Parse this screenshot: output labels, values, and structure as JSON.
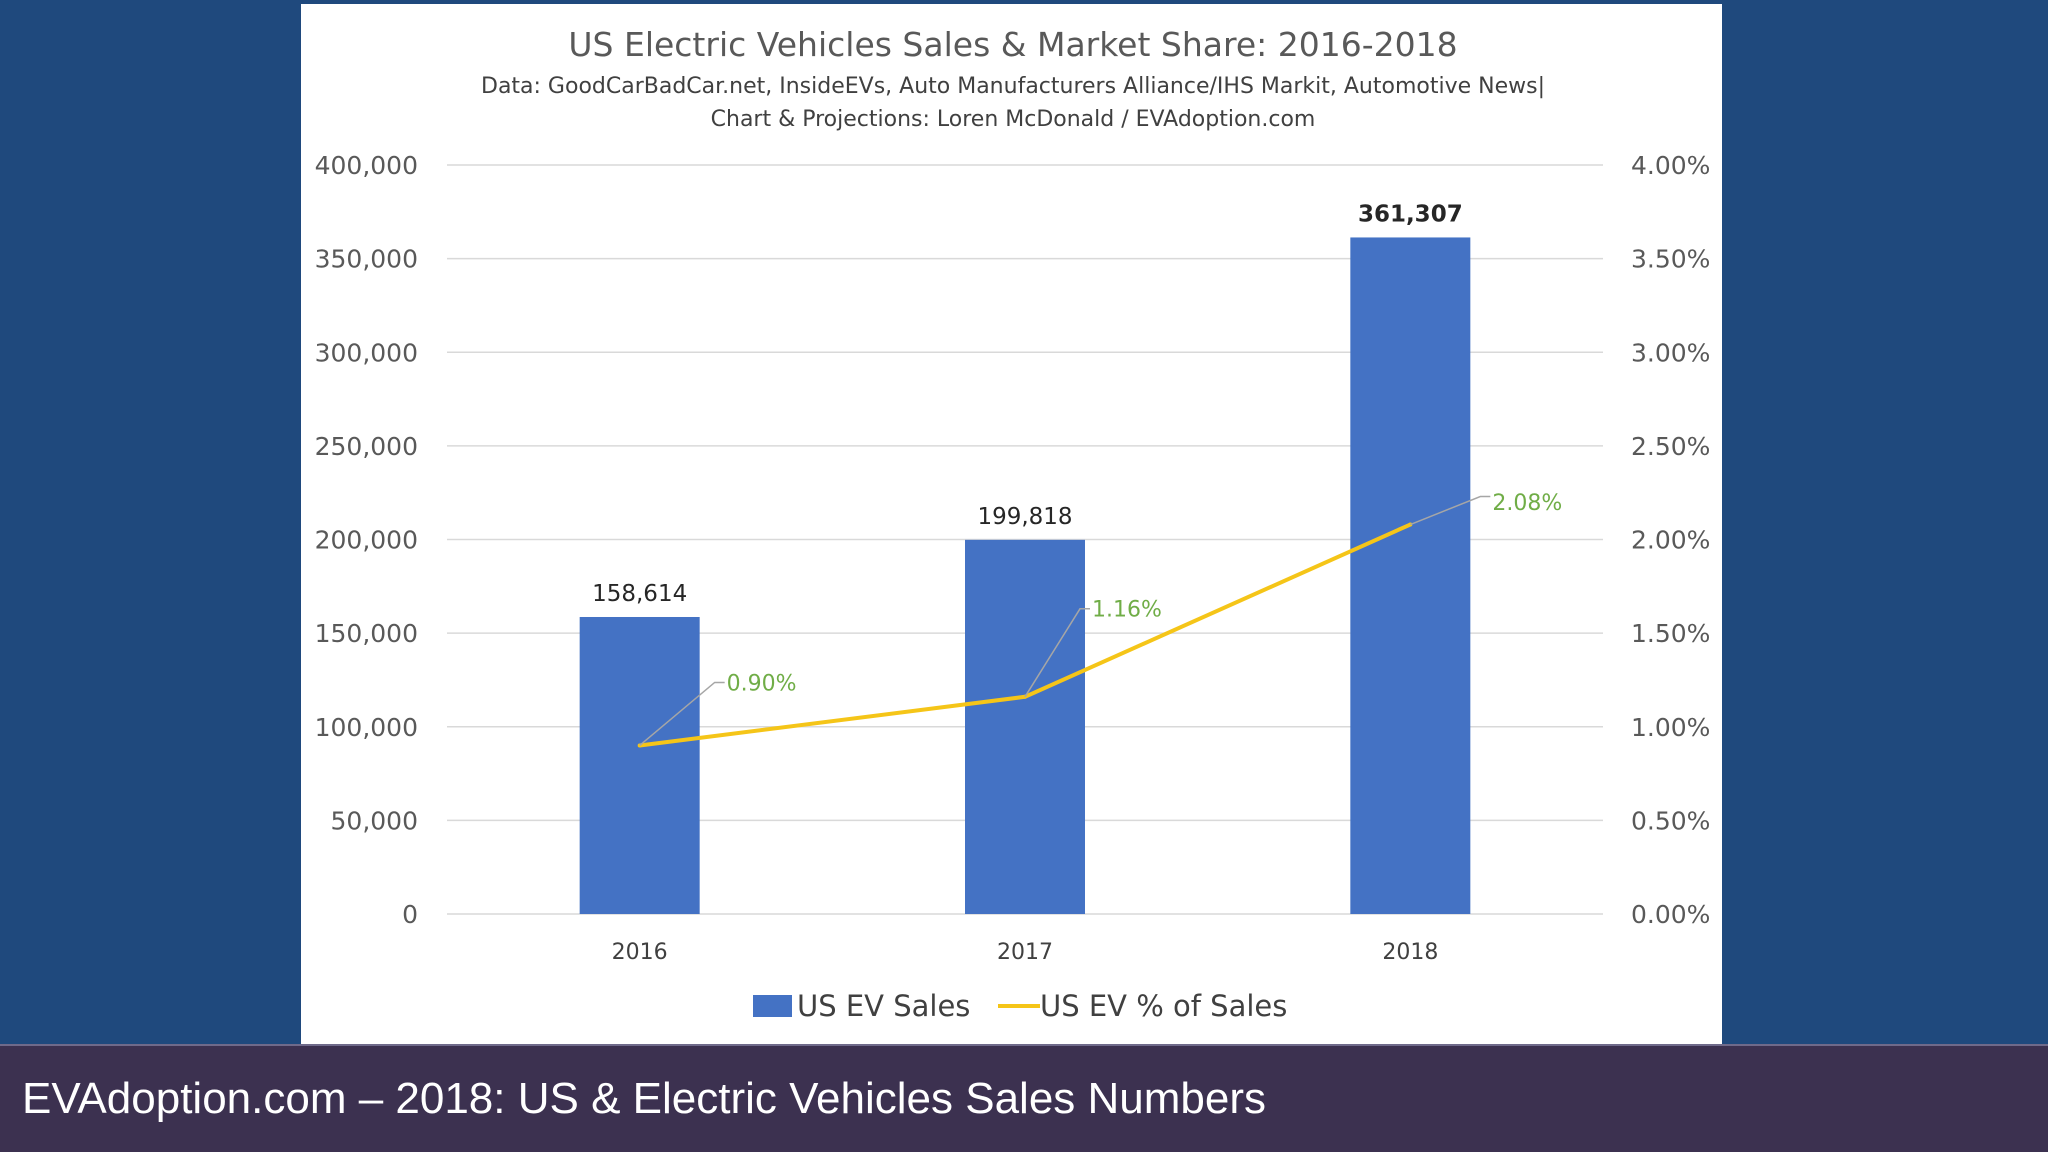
{
  "caption": "EVAdoption.com – 2018: US & Electric Vehicles Sales Numbers",
  "colors": {
    "background": "#1f497d",
    "bar": "#4472c4",
    "line": "#f5c518",
    "line_label": "#70ad47",
    "caption_bar": "#3c3150"
  },
  "chart_data": {
    "type": "bar",
    "title": "US Electric Vehicles Sales & Market Share: 2016-2018",
    "subtitle_lines": [
      "Data: GoodCarBadCar.net,  InsideEVs,  Auto Manufacturers Alliance/IHS Markit, Automotive News|",
      "Chart & Projections: Loren McDonald / EVAdoption.com"
    ],
    "categories": [
      "2016",
      "2017",
      "2018"
    ],
    "series": [
      {
        "name": "US EV Sales",
        "type": "bar",
        "axis": "left",
        "values": [
          158614,
          199818,
          361307
        ],
        "labels": [
          "158,614",
          "199,818",
          "361,307"
        ]
      },
      {
        "name": "US EV % of Sales",
        "type": "line",
        "axis": "right",
        "values": [
          0.9,
          1.16,
          2.08
        ],
        "labels": [
          "0.90%",
          "1.16%",
          "2.08%"
        ]
      }
    ],
    "ylim_left": [
      0,
      400000
    ],
    "ylim_right": [
      0,
      4.0
    ],
    "yticks_left": [
      "0",
      "50,000",
      "100,000",
      "150,000",
      "200,000",
      "250,000",
      "300,000",
      "350,000",
      "400,000"
    ],
    "yticks_right": [
      "0.00%",
      "0.50%",
      "1.00%",
      "1.50%",
      "2.00%",
      "2.50%",
      "3.00%",
      "3.50%",
      "4.00%"
    ],
    "grid": true,
    "legend": "bottom"
  }
}
